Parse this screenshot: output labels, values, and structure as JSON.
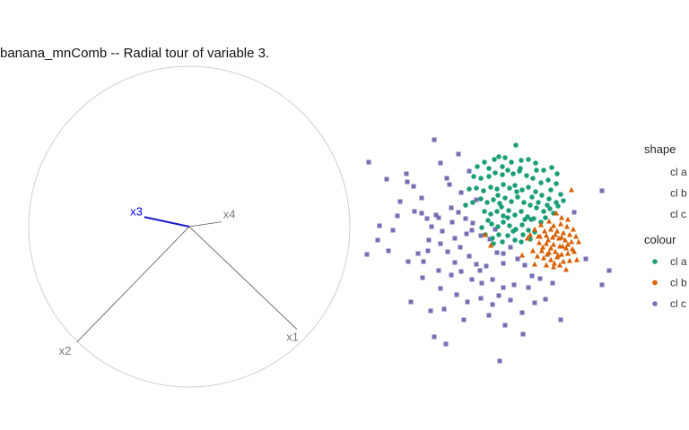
{
  "title": "banana_mnComb -- Radial tour of variable 3.",
  "chart_data": [
    {
      "type": "biplot",
      "circle": true,
      "axes": [
        {
          "label": "x1",
          "dx": 0.67,
          "dy": -0.64,
          "highlight": false
        },
        {
          "label": "x2",
          "dx": -0.7,
          "dy": -0.72,
          "highlight": false
        },
        {
          "label": "x3",
          "dx": -0.28,
          "dy": 0.06,
          "highlight": true
        },
        {
          "label": "x4",
          "dx": 0.2,
          "dy": 0.03,
          "highlight": false
        }
      ]
    },
    {
      "type": "scatter",
      "series": [
        {
          "name": "cl a",
          "shape": "circle",
          "color": "#1b9e77",
          "points": [
            [
              532,
              186
            ],
            [
              540,
              181
            ],
            [
              551,
              178
            ],
            [
              556,
              175
            ],
            [
              563,
              176
            ],
            [
              570,
              181
            ],
            [
              575,
              162
            ],
            [
              581,
              179
            ],
            [
              589,
              178
            ],
            [
              597,
              182
            ],
            [
              606,
              190
            ],
            [
              615,
              187
            ],
            [
              621,
              194
            ],
            [
              528,
              197
            ],
            [
              536,
              199
            ],
            [
              545,
              197
            ],
            [
              552,
              193
            ],
            [
              560,
              195
            ],
            [
              566,
              190
            ],
            [
              572,
              194
            ],
            [
              579,
              191
            ],
            [
              587,
              196
            ],
            [
              594,
              199
            ],
            [
              603,
              204
            ],
            [
              611,
              201
            ],
            [
              620,
              205
            ],
            [
              531,
              210
            ],
            [
              539,
              213
            ],
            [
              547,
              209
            ],
            [
              554,
              211
            ],
            [
              561,
              206
            ],
            [
              568,
              210
            ],
            [
              574,
              207
            ],
            [
              582,
              212
            ],
            [
              589,
              209
            ],
            [
              597,
              214
            ],
            [
              604,
              218
            ],
            [
              612,
              222
            ],
            [
              620,
              226
            ],
            [
              536,
              222
            ],
            [
              543,
              226
            ],
            [
              550,
              223
            ],
            [
              557,
              227
            ],
            [
              563,
              221
            ],
            [
              570,
              225
            ],
            [
              577,
              220
            ],
            [
              584,
              226
            ],
            [
              591,
              229
            ],
            [
              598,
              232
            ],
            [
              606,
              236
            ],
            [
              613,
              233
            ],
            [
              540,
              236
            ],
            [
              547,
              239
            ],
            [
              554,
              236
            ],
            [
              561,
              241
            ],
            [
              567,
              235
            ],
            [
              574,
              240
            ],
            [
              581,
              236
            ],
            [
              588,
              242
            ],
            [
              595,
              244
            ],
            [
              603,
              248
            ],
            [
              548,
              250
            ],
            [
              555,
              253
            ],
            [
              561,
              248
            ],
            [
              568,
              252
            ],
            [
              575,
              256
            ],
            [
              582,
              251
            ],
            [
              589,
              257
            ],
            [
              596,
              259
            ],
            [
              541,
              262
            ],
            [
              549,
              266
            ],
            [
              560,
              270
            ],
            [
              566,
              263
            ],
            [
              574,
              268
            ],
            [
              583,
              262
            ],
            [
              591,
              267
            ],
            [
              523,
              211
            ],
            [
              527,
              226
            ],
            [
              519,
              229
            ],
            [
              545,
              188
            ],
            [
              560,
              186
            ],
            [
              580,
              188
            ],
            [
              598,
              190
            ],
            [
              614,
              212
            ],
            [
              625,
              217
            ],
            [
              544,
              246
            ],
            [
              566,
              243
            ],
            [
              585,
              245
            ],
            [
              608,
              243
            ],
            [
              622,
              230
            ],
            [
              600,
              226
            ],
            [
              555,
              218
            ],
            [
              576,
              214
            ],
            [
              593,
              220
            ],
            [
              559,
              231
            ],
            [
              537,
              254
            ],
            [
              550,
              272
            ],
            [
              556,
              262
            ],
            [
              572,
              258
            ],
            [
              581,
              270
            ],
            [
              592,
              245
            ],
            [
              610,
              229
            ],
            [
              628,
              224
            ],
            [
              617,
              238
            ]
          ]
        },
        {
          "name": "cl b",
          "shape": "triangle",
          "color": "#d95f02",
          "points": [
            [
              637,
              212
            ],
            [
              620,
              238
            ],
            [
              626,
              243
            ],
            [
              633,
              245
            ],
            [
              612,
              247
            ],
            [
              603,
              251
            ],
            [
              617,
              252
            ],
            [
              625,
              250
            ],
            [
              632,
              253
            ],
            [
              639,
              256
            ],
            [
              596,
              256
            ],
            [
              607,
              258
            ],
            [
              614,
              256
            ],
            [
              621,
              258
            ],
            [
              628,
              260
            ],
            [
              635,
              262
            ],
            [
              642,
              264
            ],
            [
              591,
              262
            ],
            [
              600,
              264
            ],
            [
              609,
              263
            ],
            [
              616,
              265
            ],
            [
              623,
              266
            ],
            [
              630,
              268
            ],
            [
              637,
              270
            ],
            [
              601,
              271
            ],
            [
              609,
              272
            ],
            [
              617,
              273
            ],
            [
              624,
              275
            ],
            [
              631,
              277
            ],
            [
              638,
              278
            ],
            [
              604,
              280
            ],
            [
              612,
              282
            ],
            [
              619,
              281
            ],
            [
              626,
              284
            ],
            [
              633,
              283
            ],
            [
              640,
              281
            ],
            [
              588,
              266
            ],
            [
              582,
              285
            ],
            [
              594,
              280
            ],
            [
              606,
              288
            ],
            [
              614,
              290
            ],
            [
              621,
              287
            ],
            [
              628,
              292
            ],
            [
              635,
              291
            ],
            [
              609,
              296
            ],
            [
              617,
              298
            ],
            [
              624,
              296
            ],
            [
              631,
              301
            ],
            [
              596,
              295
            ],
            [
              602,
              264
            ],
            [
              611,
              268
            ],
            [
              619,
              262
            ],
            [
              627,
              275
            ],
            [
              622,
              285
            ],
            [
              614,
              277
            ],
            [
              605,
              276
            ],
            [
              633,
              273
            ],
            [
              645,
              270
            ],
            [
              599,
              286
            ],
            [
              643,
              290
            ],
            [
              618,
              294
            ],
            [
              626,
              265
            ],
            [
              610,
              284
            ],
            [
              547,
              274
            ],
            [
              541,
              262
            ]
          ]
        },
        {
          "name": "cl c",
          "shape": "square",
          "color": "#7570b3",
          "points": [
            [
              484,
              156
            ],
            [
              411,
              181
            ],
            [
              491,
              182
            ],
            [
              511,
              172
            ],
            [
              453,
              194
            ],
            [
              431,
              200
            ],
            [
              461,
              208
            ],
            [
              501,
              206
            ],
            [
              446,
              225
            ],
            [
              486,
              240
            ],
            [
              423,
              252
            ],
            [
              438,
              257
            ],
            [
              476,
              244
            ],
            [
              489,
              243
            ],
            [
              481,
              253
            ],
            [
              493,
              258
            ],
            [
              503,
              232
            ],
            [
              511,
              237
            ],
            [
              519,
              244
            ],
            [
              527,
              249
            ],
            [
              409,
              284
            ],
            [
              421,
              268
            ],
            [
              433,
              280
            ],
            [
              455,
              292
            ],
            [
              466,
              283
            ],
            [
              472,
              292
            ],
            [
              478,
              268
            ],
            [
              491,
              272
            ],
            [
              499,
              281
            ],
            [
              507,
              266
            ],
            [
              513,
              276
            ],
            [
              523,
              286
            ],
            [
              531,
              295
            ],
            [
              536,
              263
            ],
            [
              546,
              267
            ],
            [
              554,
              282
            ],
            [
              561,
              294
            ],
            [
              569,
              276
            ],
            [
              577,
              289
            ],
            [
              585,
              296
            ],
            [
              471,
              310
            ],
            [
              489,
              302
            ],
            [
              503,
              307
            ],
            [
              514,
              303
            ],
            [
              526,
              312
            ],
            [
              537,
              316
            ],
            [
              549,
              312
            ],
            [
              561,
              321
            ],
            [
              573,
              318
            ],
            [
              589,
              321
            ],
            [
              602,
              311
            ],
            [
              616,
              316
            ],
            [
              491,
              322
            ],
            [
              509,
              329
            ],
            [
              521,
              337
            ],
            [
              536,
              333
            ],
            [
              549,
              340
            ],
            [
              569,
              335
            ],
            [
              458,
              337
            ],
            [
              480,
              347
            ],
            [
              495,
              345
            ],
            [
              517,
              357
            ],
            [
              545,
              352
            ],
            [
              563,
              363
            ],
            [
              583,
              373
            ],
            [
              625,
              357
            ],
            [
              484,
              376
            ],
            [
              497,
              384
            ],
            [
              557,
              403
            ],
            [
              671,
              213
            ],
            [
              679,
              302
            ],
            [
              671,
              318
            ],
            [
              653,
              289
            ],
            [
              640,
              237
            ],
            [
              593,
              308
            ],
            [
              608,
              334
            ],
            [
              454,
              203
            ],
            [
              470,
              221
            ],
            [
              443,
              241
            ],
            [
              507,
              293
            ],
            [
              526,
              257
            ],
            [
              556,
              330
            ],
            [
              582,
              349
            ],
            [
              514,
              215
            ],
            [
              498,
              199
            ],
            [
              531,
              223
            ],
            [
              462,
              236
            ],
            [
              477,
              280
            ],
            [
              542,
              297
            ],
            [
              596,
              338
            ],
            [
              523,
              191
            ],
            [
              470,
              238
            ],
            [
              504,
              248
            ],
            [
              535,
              302
            ],
            [
              561,
              283
            ],
            [
              520,
              261
            ],
            [
              552,
              256
            ]
          ]
        }
      ]
    }
  ],
  "legend": {
    "shape": {
      "title": "shape",
      "items": [
        "cl a",
        "cl b",
        "cl c"
      ]
    },
    "colour": {
      "title": "colour",
      "items": [
        "cl a",
        "cl b",
        "cl c"
      ]
    }
  }
}
